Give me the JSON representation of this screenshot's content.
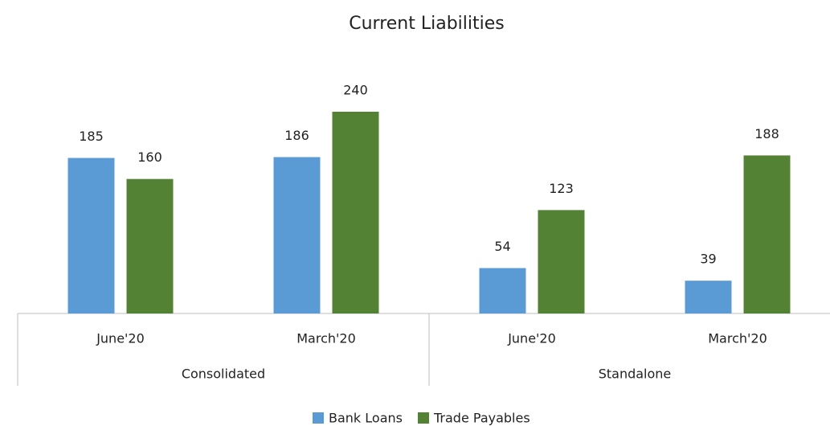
{
  "chart_data": {
    "type": "bar",
    "title": "Current Liabilities",
    "categories": [
      "June'20",
      "March'20",
      "June'20",
      "March'20"
    ],
    "category_groups": [
      "Consolidated",
      "Standalone"
    ],
    "series": [
      {
        "name": "Bank Loans",
        "color": "#5b9bd5",
        "values": [
          185,
          186,
          54,
          39
        ]
      },
      {
        "name": "Trade Payables",
        "color": "#548235",
        "values": [
          160,
          240,
          123,
          188
        ]
      }
    ],
    "legend": "bottom"
  }
}
